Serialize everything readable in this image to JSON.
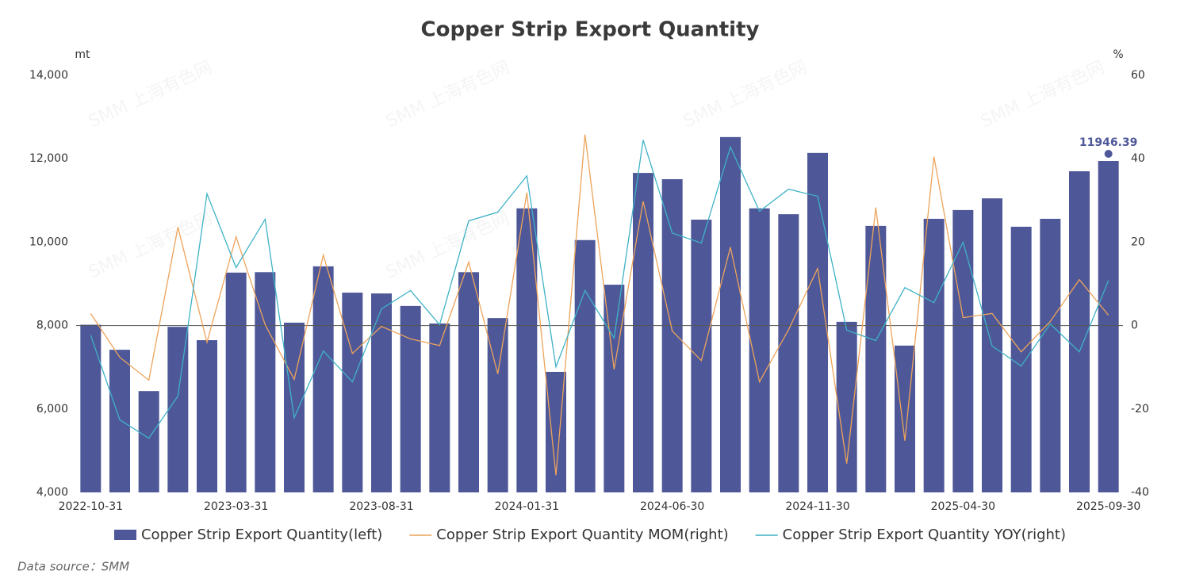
{
  "chart_data": {
    "type": "bar_line",
    "title": "Copper Strip Export Quantity",
    "y_label": "mt",
    "y2_label": "%",
    "source": "Data source：SMM",
    "watermark": "SMM 上海有色网",
    "categories": [
      "2022-10-31",
      null,
      null,
      null,
      null,
      "2023-03-31",
      null,
      null,
      null,
      null,
      "2023-08-31",
      null,
      null,
      null,
      null,
      "2024-01-31",
      null,
      null,
      null,
      null,
      "2024-06-30",
      null,
      null,
      null,
      null,
      "2024-11-30",
      null,
      null,
      null,
      null,
      "2025-04-30",
      null,
      null,
      null,
      null,
      "2025-09-30"
    ],
    "series": [
      {
        "name": "Copper Strip Export Quantity(left)",
        "type": "bar",
        "color": "#4e5899",
        "axis": "y",
        "values": [
          8020,
          7420,
          6430,
          7970,
          7650,
          9270,
          9280,
          8070,
          9420,
          8790,
          8770,
          8470,
          8050,
          9280,
          8180,
          10810,
          6890,
          10050,
          8980,
          11660,
          11510,
          10540,
          12520,
          10810,
          10670,
          12140,
          8090,
          10390,
          7520,
          10560,
          10770,
          11050,
          10370,
          10560,
          11700,
          11946.39
        ]
      },
      {
        "name": "Copper Strip Export Quantity MOM(right)",
        "type": "line",
        "color": "#eda35a",
        "axis": "y2",
        "values": [
          2.9,
          -7.6,
          -13.1,
          23.6,
          -4.0,
          21.3,
          0.2,
          -12.9,
          16.9,
          -6.7,
          -0.2,
          -3.2,
          -4.8,
          15.2,
          -11.6,
          31.9,
          -35.9,
          45.8,
          -10.5,
          29.8,
          -1.3,
          -8.4,
          18.8,
          -13.5,
          -1.0,
          13.7,
          -33.1,
          28.3,
          -27.6,
          40.5,
          1.9,
          2.9,
          -6.3,
          1.0,
          11.0,
          2.5
        ]
      },
      {
        "name": "Copper Strip Export Quantity YOY(right)",
        "type": "line",
        "color": "#3fb2c6",
        "axis": "y2",
        "values": [
          -2.3,
          -22.6,
          -27.0,
          -16.9,
          31.6,
          13.9,
          25.5,
          -22.1,
          -6.1,
          -13.5,
          4.0,
          8.4,
          0.2,
          25.1,
          27.2,
          35.9,
          -9.9,
          8.4,
          -3.0,
          44.5,
          22.2,
          19.8,
          42.8,
          27.4,
          32.7,
          31.0,
          -1.1,
          -3.6,
          9.1,
          5.5,
          20.0,
          -4.9,
          -9.7,
          0.4,
          -6.3,
          10.8
        ]
      }
    ],
    "ylim": [
      4000,
      14000
    ],
    "yticks": [
      {
        "value": 4000,
        "label": "4,000"
      },
      {
        "value": 6000,
        "label": "6,000"
      },
      {
        "value": 8000,
        "label": "8,000"
      },
      {
        "value": 10000,
        "label": "10,000"
      },
      {
        "value": 12000,
        "label": "12,000"
      },
      {
        "value": 14000,
        "label": "14,000"
      }
    ],
    "y2lim": [
      -40,
      60
    ],
    "y2ticks": [
      -40,
      -20,
      0,
      20,
      40,
      60
    ],
    "legend": "bottom"
  }
}
